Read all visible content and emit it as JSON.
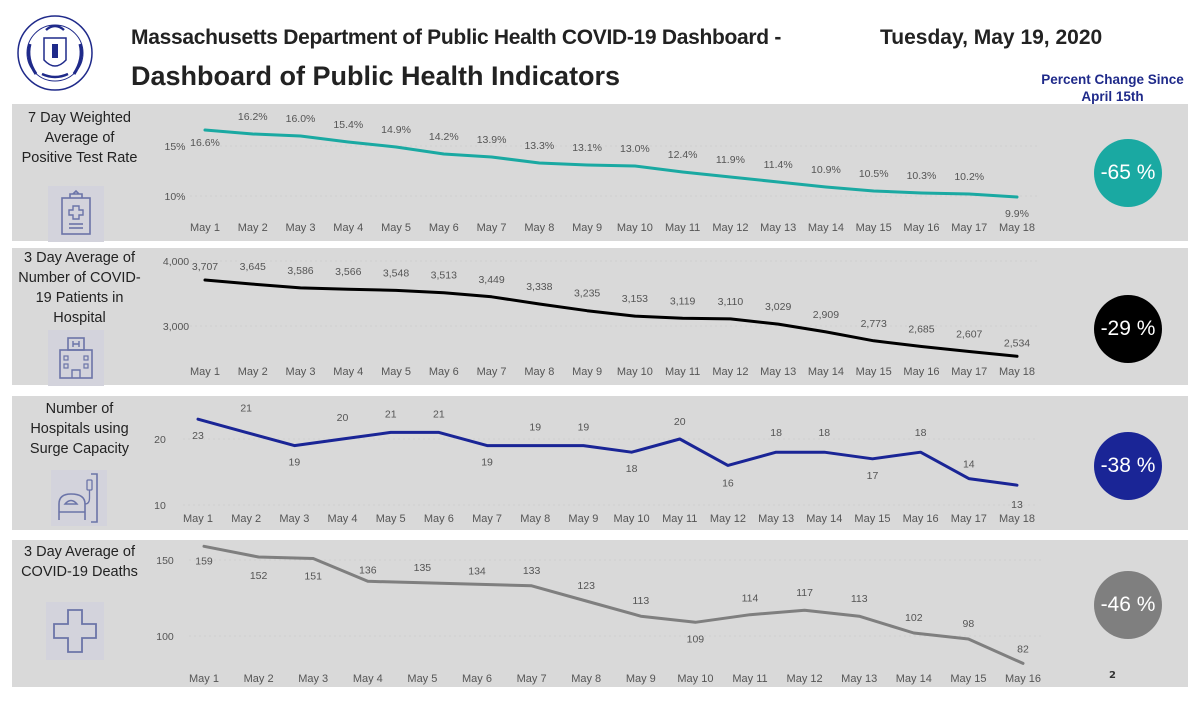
{
  "header": {
    "title_line1": "Massachusetts Department of Public Health COVID-19 Dashboard -",
    "title_line2": "Dashboard of Public Health Indicators",
    "date": "Tuesday, May 19, 2020",
    "percent_change_heading_line1": "Percent Change Since",
    "percent_change_heading_line2": "April 15th",
    "logo": "massachusetts-dph-seal"
  },
  "colors": {
    "panel_bg": "#d9d9d9",
    "teal": "#1aa9a2",
    "black": "#000000",
    "navy": "#1a2596",
    "gray": "#7f7f7f",
    "heading_blue": "#1f2a8a",
    "icon_stroke": "#6b74a8"
  },
  "panels": [
    {
      "label_lines": [
        "7 Day Weighted",
        "Average of",
        "Positive Test Rate"
      ],
      "icon": "clipboard-medical-icon",
      "percent_change": "-65 %"
    },
    {
      "label_lines": [
        "3 Day Average of",
        "Number of COVID-",
        "19 Patients in",
        "Hospital"
      ],
      "icon": "hospital-building-icon",
      "percent_change": "-29 %"
    },
    {
      "label_lines": [
        "Number of",
        "Hospitals using",
        "Surge Capacity"
      ],
      "icon": "hospital-bed-icon",
      "percent_change": "-38 %"
    },
    {
      "label_lines": [
        "3 Day Average of",
        "COVID-19 Deaths"
      ],
      "icon": "medical-cross-icon",
      "percent_change": "-46 %"
    }
  ],
  "page_number": "2",
  "chart_data": [
    {
      "type": "line",
      "title": "7 Day Weighted Average of Positive Test Rate",
      "categories": [
        "May 1",
        "May 2",
        "May 3",
        "May 4",
        "May 5",
        "May 6",
        "May 7",
        "May 8",
        "May 9",
        "May 10",
        "May 11",
        "May 12",
        "May 13",
        "May 14",
        "May 15",
        "May 16",
        "May 17",
        "May 18"
      ],
      "values": [
        16.6,
        16.2,
        16.0,
        15.4,
        14.9,
        14.2,
        13.9,
        13.3,
        13.1,
        13.0,
        12.4,
        11.9,
        11.4,
        10.9,
        10.5,
        10.3,
        10.2,
        9.9
      ],
      "value_labels": [
        "16.6%",
        "16.2%",
        "16.0%",
        "15.4%",
        "14.9%",
        "14.2%",
        "13.9%",
        "13.3%",
        "13.1%",
        "13.0%",
        "12.4%",
        "11.9%",
        "11.4%",
        "10.9%",
        "10.5%",
        "10.3%",
        "10.2%",
        "9.9%"
      ],
      "yticks": [
        10,
        15
      ],
      "ytick_labels": [
        "10%",
        "15%"
      ],
      "color": "#1aa9a2",
      "percent_change": "-65 %"
    },
    {
      "type": "line",
      "title": "3 Day Average of Number of COVID-19 Patients in Hospital",
      "categories": [
        "May 1",
        "May 2",
        "May 3",
        "May 4",
        "May 5",
        "May 6",
        "May 7",
        "May 8",
        "May 9",
        "May 10",
        "May 11",
        "May 12",
        "May 13",
        "May 14",
        "May 15",
        "May 16",
        "May 17",
        "May 18"
      ],
      "values": [
        3707,
        3645,
        3586,
        3566,
        3548,
        3513,
        3449,
        3338,
        3235,
        3153,
        3119,
        3110,
        3029,
        2909,
        2773,
        2685,
        2607,
        2534
      ],
      "value_labels": [
        "3,707",
        "3,645",
        "3,586",
        "3,566",
        "3,548",
        "3,513",
        "3,449",
        "3,338",
        "3,235",
        "3,153",
        "3,119",
        "3,110",
        "3,029",
        "2,909",
        "2,773",
        "2,685",
        "2,607",
        "2,534"
      ],
      "yticks": [
        3000,
        4000
      ],
      "ytick_labels": [
        "3,000",
        "4,000"
      ],
      "color": "#000000",
      "percent_change": "-29 %"
    },
    {
      "type": "line",
      "title": "Number of Hospitals using Surge Capacity",
      "categories": [
        "May 1",
        "May 2",
        "May 3",
        "May 4",
        "May 5",
        "May 6",
        "May 7",
        "May 8",
        "May 9",
        "May 10",
        "May 11",
        "May 12",
        "May 13",
        "May 14",
        "May 15",
        "May 16",
        "May 17",
        "May 18"
      ],
      "values": [
        23,
        21,
        19,
        20,
        21,
        21,
        19,
        19,
        19,
        18,
        20,
        16,
        18,
        18,
        17,
        18,
        14,
        13
      ],
      "value_labels": [
        "23",
        "21",
        "19",
        "20",
        "21",
        "21",
        "19",
        "19",
        "19",
        "18",
        "20",
        "16",
        "18",
        "18",
        "17",
        "18",
        "14",
        "13"
      ],
      "yticks": [
        10,
        20
      ],
      "ytick_labels": [
        "10",
        "20"
      ],
      "color": "#1a2596",
      "percent_change": "-38 %"
    },
    {
      "type": "line",
      "title": "3 Day Average of COVID-19 Deaths",
      "categories": [
        "May 1",
        "May 2",
        "May 3",
        "May 4",
        "May 5",
        "May 6",
        "May 7",
        "May 8",
        "May 9",
        "May 10",
        "May 11",
        "May 12",
        "May 13",
        "May 14",
        "May 15",
        "May 16"
      ],
      "values": [
        159,
        152,
        151,
        136,
        135,
        134,
        133,
        123,
        113,
        109,
        114,
        117,
        113,
        102,
        98,
        82
      ],
      "value_labels": [
        "159",
        "152",
        "151",
        "136",
        "135",
        "134",
        "133",
        "123",
        "113",
        "109",
        "114",
        "117",
        "113",
        "102",
        "98",
        "82"
      ],
      "yticks": [
        100,
        150
      ],
      "ytick_labels": [
        "100",
        "150"
      ],
      "color": "#7f7f7f",
      "percent_change": "-46 %"
    }
  ]
}
